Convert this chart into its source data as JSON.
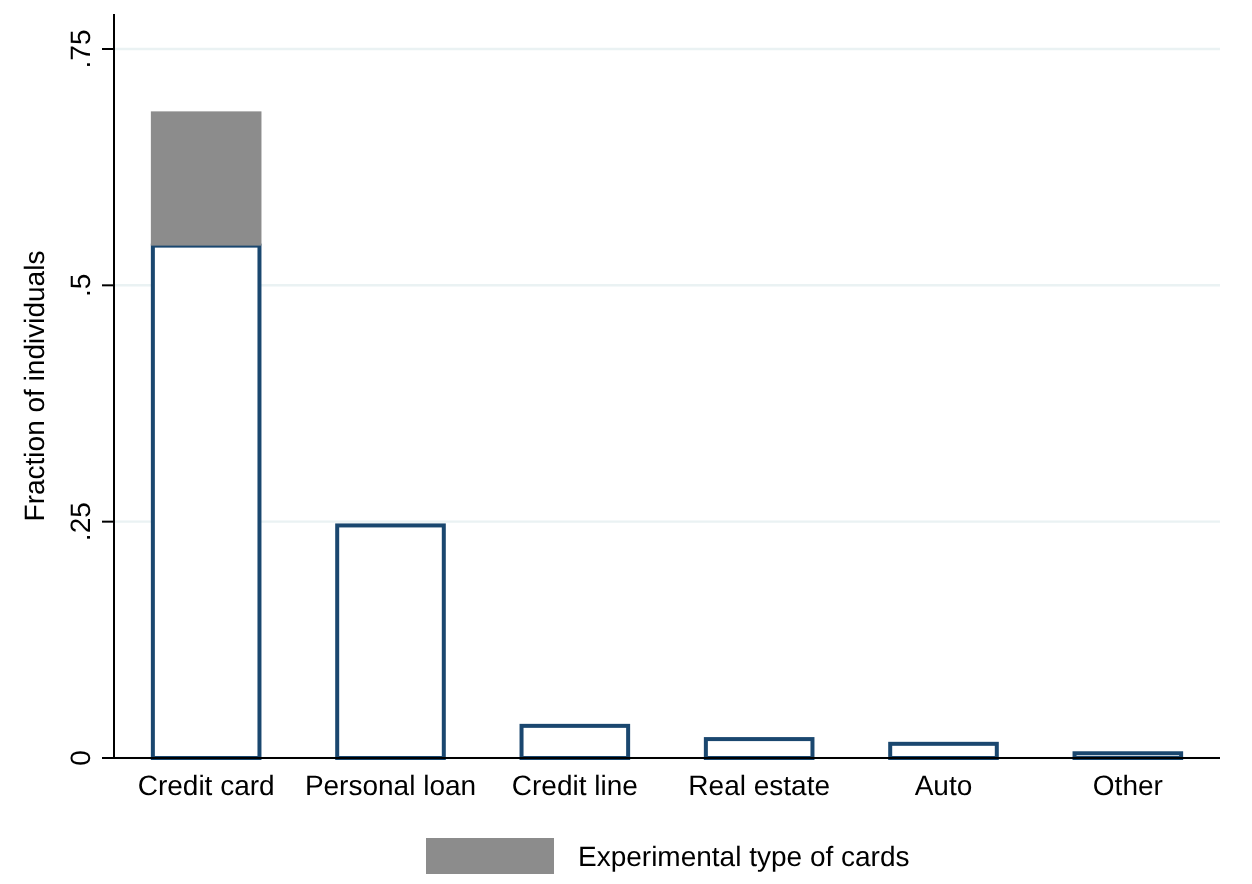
{
  "chart_data": {
    "type": "bar",
    "stacked": true,
    "ylabel": "Fraction of individuals",
    "categories": [
      "Credit card",
      "Personal loan",
      "Credit line",
      "Real estate",
      "Auto",
      "Other"
    ],
    "series": [
      {
        "color": "#ffffff",
        "values": [
          0.542,
          0.246,
          0.034,
          0.02,
          0.015,
          0.005
        ]
      },
      {
        "name": "Experimental type of cards",
        "color": "#8c8c8c",
        "values": [
          0.142,
          null,
          null,
          null,
          null,
          null
        ]
      }
    ],
    "ylim": [
      0,
      0.787
    ],
    "yticks": [
      0,
      {
        "value": 0.25,
        "label": ".25"
      },
      {
        "value": 0.5,
        "label": ".5"
      },
      {
        "value": 0.75,
        "label": ".75"
      }
    ],
    "grid": "y",
    "legend": "bottom"
  }
}
